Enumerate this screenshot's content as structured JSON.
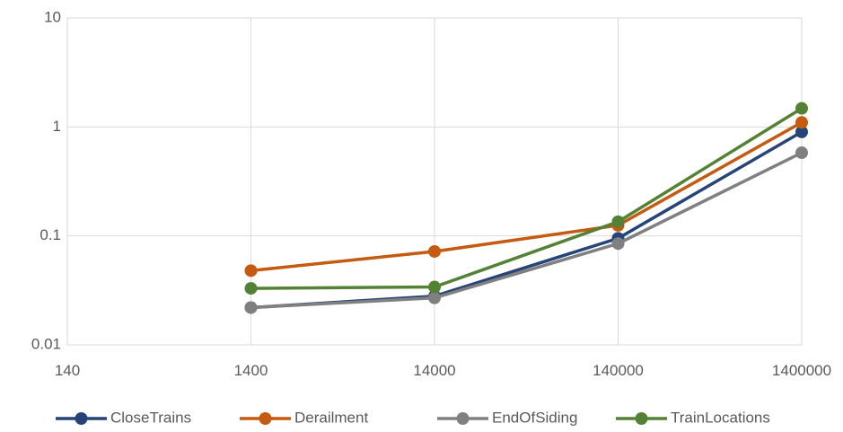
{
  "chart_data": {
    "type": "line",
    "title": "",
    "xlabel": "",
    "ylabel": "",
    "x_scale": "log",
    "y_scale": "log",
    "xlim": [
      140,
      1400000
    ],
    "ylim": [
      0.01,
      10
    ],
    "x_ticks": [
      "140",
      "1400",
      "14000",
      "140000",
      "1400000"
    ],
    "y_ticks": [
      "0.01",
      "0.1",
      "1",
      "10"
    ],
    "grid": true,
    "legend_position": "bottom",
    "x": [
      1400,
      14000,
      140000,
      1400000
    ],
    "series": [
      {
        "name": "CloseTrains",
        "color": "#264478",
        "values": [
          0.022,
          0.028,
          0.095,
          0.9
        ]
      },
      {
        "name": "Derailment",
        "color": "#C55A11",
        "values": [
          0.048,
          0.072,
          0.125,
          1.1
        ]
      },
      {
        "name": "EndOfSiding",
        "color": "#808080",
        "values": [
          0.022,
          0.027,
          0.085,
          0.58
        ]
      },
      {
        "name": "TrainLocations",
        "color": "#548235",
        "values": [
          0.033,
          0.034,
          0.135,
          1.48
        ]
      }
    ]
  }
}
